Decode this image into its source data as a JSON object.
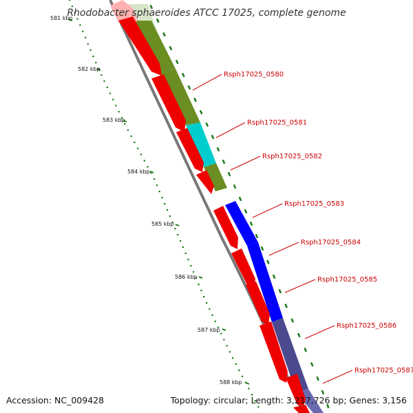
{
  "title": "Rhodobacter sphaeroides ATCC 17025, complete genome",
  "ticks": [
    "581 kbp",
    "582 kbp",
    "583 kbp",
    "584 kbp",
    "585 kbp",
    "586 kbp",
    "587 kbp",
    "588 kbp"
  ],
  "genes": [
    {
      "label": "Rsph17025_0580",
      "cog_color": "#6b8e23"
    },
    {
      "label": "Rsph17025_0581",
      "cog_color": "#00cdcd"
    },
    {
      "label": "Rsph17025_0582",
      "cog_color": "#6b8e23"
    },
    {
      "label": "Rsph17025_0583",
      "cog_color": "#0000ff"
    },
    {
      "label": "Rsph17025_0584",
      "cog_color": "#0000ff"
    },
    {
      "label": "Rsph17025_0585",
      "cog_color": "#0000ff"
    },
    {
      "label": "Rsph17025_0586",
      "cog_color": "#4b4a8f"
    },
    {
      "label": "Rsph17025_0587",
      "cog_color": "#4b4a8f"
    }
  ],
  "colors": {
    "cds": "#ee0000",
    "backbone": "#888888",
    "tick": "#1a7a1a",
    "gene_label": "#cc0000"
  },
  "footer": {
    "accession": "Accession: NC_009428",
    "summary": "Topology: circular; Length: 3,217,726 bp; Genes: 3,156"
  }
}
